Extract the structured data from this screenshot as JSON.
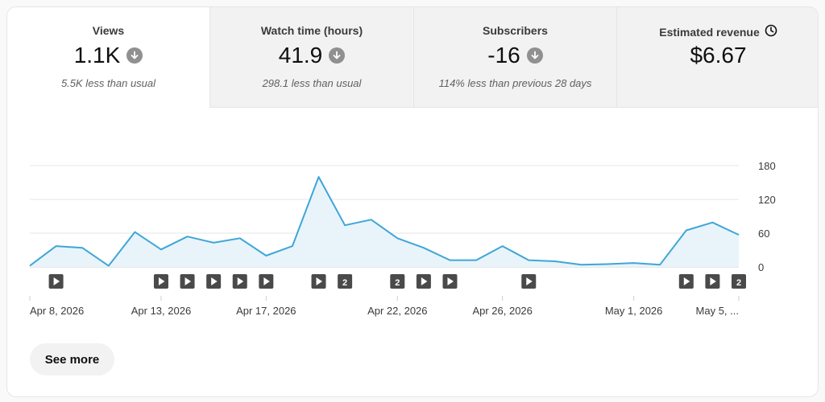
{
  "tabs": [
    {
      "title": "Views",
      "value": "1.1K",
      "sub": "5.5K less than usual",
      "icon": "arrow-down-circle-icon",
      "active": true
    },
    {
      "title": "Watch time (hours)",
      "value": "41.9",
      "sub": "298.1 less than usual",
      "icon": "arrow-down-circle-icon",
      "active": false
    },
    {
      "title": "Subscribers",
      "value": "-16",
      "sub": "114% less than previous 28 days",
      "icon": "arrow-down-circle-icon",
      "active": false
    },
    {
      "title": "Estimated revenue",
      "value": "$6.67",
      "sub": "",
      "icon": "clock-icon",
      "active": false
    }
  ],
  "see_more_label": "See more",
  "colors": {
    "line": "#3ea6d8",
    "fill": "#e8f4fa",
    "marker": "#4a4a4a",
    "grid": "#e6e6e6"
  },
  "chart_data": {
    "type": "area",
    "title": "",
    "xlabel": "",
    "ylabel": "",
    "ylim": [
      0,
      180
    ],
    "yticks": [
      0,
      60,
      120,
      180
    ],
    "grid": true,
    "x_start": "Apr 8, 2026",
    "x_tick_labels": [
      "Apr 8, 2026",
      "Apr 13, 2026",
      "Apr 17, 2026",
      "Apr 22, 2026",
      "Apr 26, 2026",
      "May 1, 2026",
      "May 5, ..."
    ],
    "x_tick_indices": [
      0,
      5,
      9,
      14,
      18,
      23,
      27
    ],
    "series": [
      {
        "values": [
          2,
          37,
          34,
          2,
          62,
          31,
          54,
          43,
          51,
          20,
          37,
          160,
          74,
          84,
          51,
          34,
          12,
          12,
          37,
          12,
          10,
          4,
          5,
          7,
          4,
          65,
          79,
          57
        ]
      }
    ],
    "upload_markers": [
      {
        "index": 1,
        "label": "▶"
      },
      {
        "index": 5,
        "label": "▶"
      },
      {
        "index": 6,
        "label": "▶"
      },
      {
        "index": 7,
        "label": "▶"
      },
      {
        "index": 8,
        "label": "▶"
      },
      {
        "index": 9,
        "label": "▶"
      },
      {
        "index": 11,
        "label": "▶"
      },
      {
        "index": 12,
        "label": "2"
      },
      {
        "index": 14,
        "label": "2"
      },
      {
        "index": 15,
        "label": "▶"
      },
      {
        "index": 16,
        "label": "▶"
      },
      {
        "index": 19,
        "label": "▶"
      },
      {
        "index": 25,
        "label": "▶"
      },
      {
        "index": 26,
        "label": "▶"
      },
      {
        "index": 27,
        "label": "2"
      }
    ]
  }
}
